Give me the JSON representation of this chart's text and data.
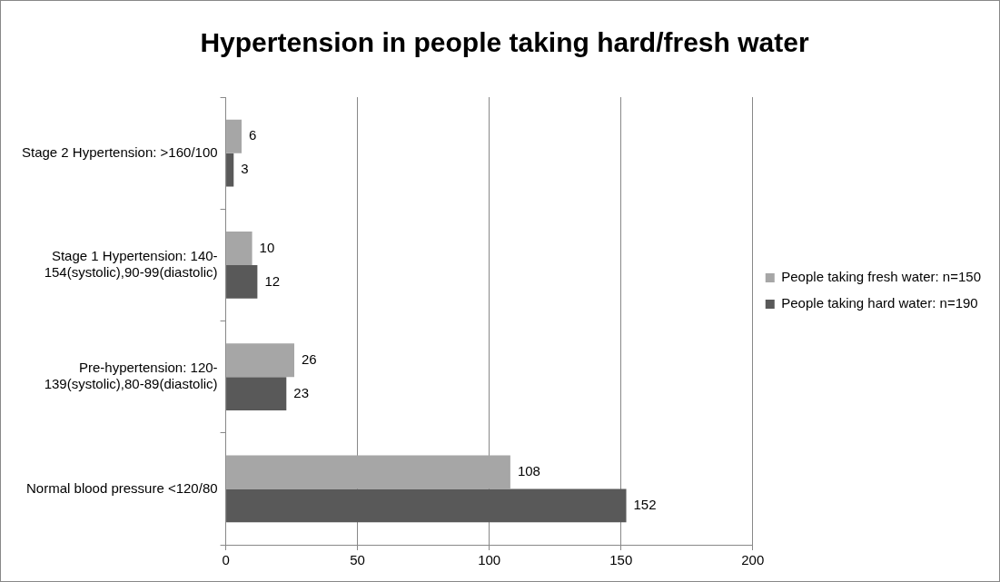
{
  "chart_data": {
    "type": "bar",
    "orientation": "horizontal",
    "title": "Hypertension in people taking hard/fresh water",
    "categories": [
      "Stage 2 Hypertension: >160/100",
      "Stage 1 Hypertension: 140-154(systolic),90-99(diastolic)",
      "Pre-hypertension: 120-139(systolic),80-89(diastolic)",
      "Normal blood pressure <120/80"
    ],
    "series": [
      {
        "name": "People taking fresh water: n=150",
        "color": "#a6a6a6",
        "values": [
          6,
          10,
          26,
          108
        ]
      },
      {
        "name": "People taking hard water: n=190",
        "color": "#595959",
        "values": [
          3,
          12,
          23,
          152
        ]
      }
    ],
    "xlim": [
      0,
      200
    ],
    "xticks": [
      0,
      50,
      100,
      150,
      200
    ],
    "grid": "x",
    "legend": "right",
    "data_labels": true
  }
}
